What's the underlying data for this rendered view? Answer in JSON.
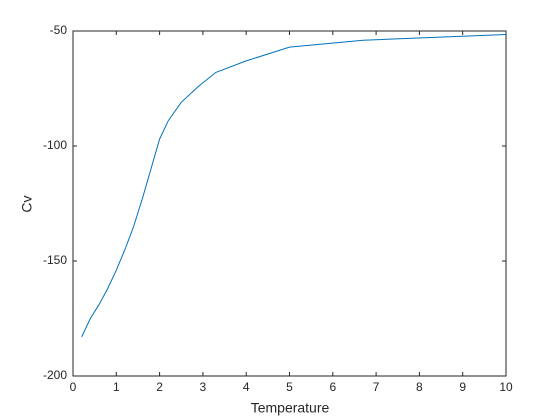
{
  "chart_data": {
    "type": "line",
    "x_label": "Temperature",
    "y_label": "Cv",
    "x": [
      0.2,
      0.4,
      0.6,
      0.8,
      1.0,
      1.2,
      1.4,
      1.6,
      1.8,
      2.0,
      2.2,
      2.5,
      2.9,
      3.3,
      4.0,
      5.0,
      6.7,
      10.0
    ],
    "series": [
      {
        "color": "#0072bd",
        "values": [
          -183,
          -175,
          -169,
          -162,
          -154,
          -145,
          -135,
          -123,
          -110,
          -97,
          -89,
          -81,
          -74,
          -68,
          -63,
          -57,
          -54,
          -51.5
        ]
      }
    ],
    "xlim": [
      0,
      10
    ],
    "xticks": [
      0,
      1,
      2,
      3,
      4,
      5,
      6,
      7,
      8,
      9,
      10
    ],
    "ylim": [
      -200,
      -50
    ],
    "yticks": [
      -200,
      -150,
      -100,
      -50
    ],
    "grid": false
  }
}
